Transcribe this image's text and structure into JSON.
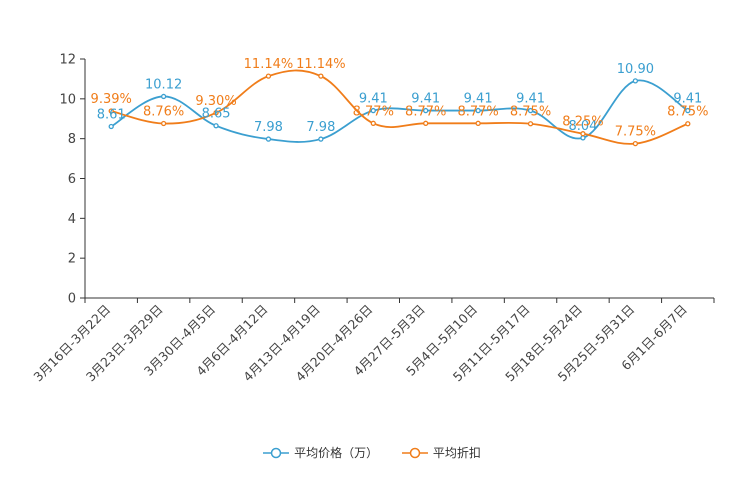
{
  "chart_data": {
    "type": "line",
    "categories": [
      "3月16日-3月22日",
      "3月23日-3月29日",
      "3月30日-4月5日",
      "4月6日-4月12日",
      "4月13日-4月19日",
      "4月20日-4月26日",
      "4月27日-5月3日",
      "5月4日-5月10日",
      "5月11日-5月17日",
      "5月18日-5月24日",
      "5月25日-5月31日",
      "6月1日-6月7日"
    ],
    "ylim": [
      0,
      12
    ],
    "yticks": [
      0,
      2,
      4,
      6,
      8,
      10,
      12
    ],
    "series": [
      {
        "name": "平均价格（万）",
        "color": "#3b9fd0",
        "values": [
          8.61,
          10.12,
          8.65,
          7.98,
          7.98,
          9.41,
          9.41,
          9.41,
          9.41,
          8.04,
          10.9,
          9.41
        ],
        "labels": [
          "8.61",
          "10.12",
          "8.65",
          "7.98",
          "7.98",
          "9.41",
          "9.41",
          "9.41",
          "9.41",
          "8.04",
          "10.90",
          "9.41"
        ]
      },
      {
        "name": "平均折扣",
        "color": "#f07d1a",
        "values": [
          9.39,
          8.76,
          9.3,
          11.14,
          11.14,
          8.77,
          8.77,
          8.77,
          8.75,
          8.25,
          7.75,
          8.75
        ],
        "labels": [
          "9.39%",
          "8.76%",
          "9.30%",
          "11.14%",
          "11.14%",
          "8.77%",
          "8.77%",
          "8.77%",
          "8.75%",
          "8.25%",
          "7.75%",
          "8.75%"
        ]
      }
    ]
  }
}
